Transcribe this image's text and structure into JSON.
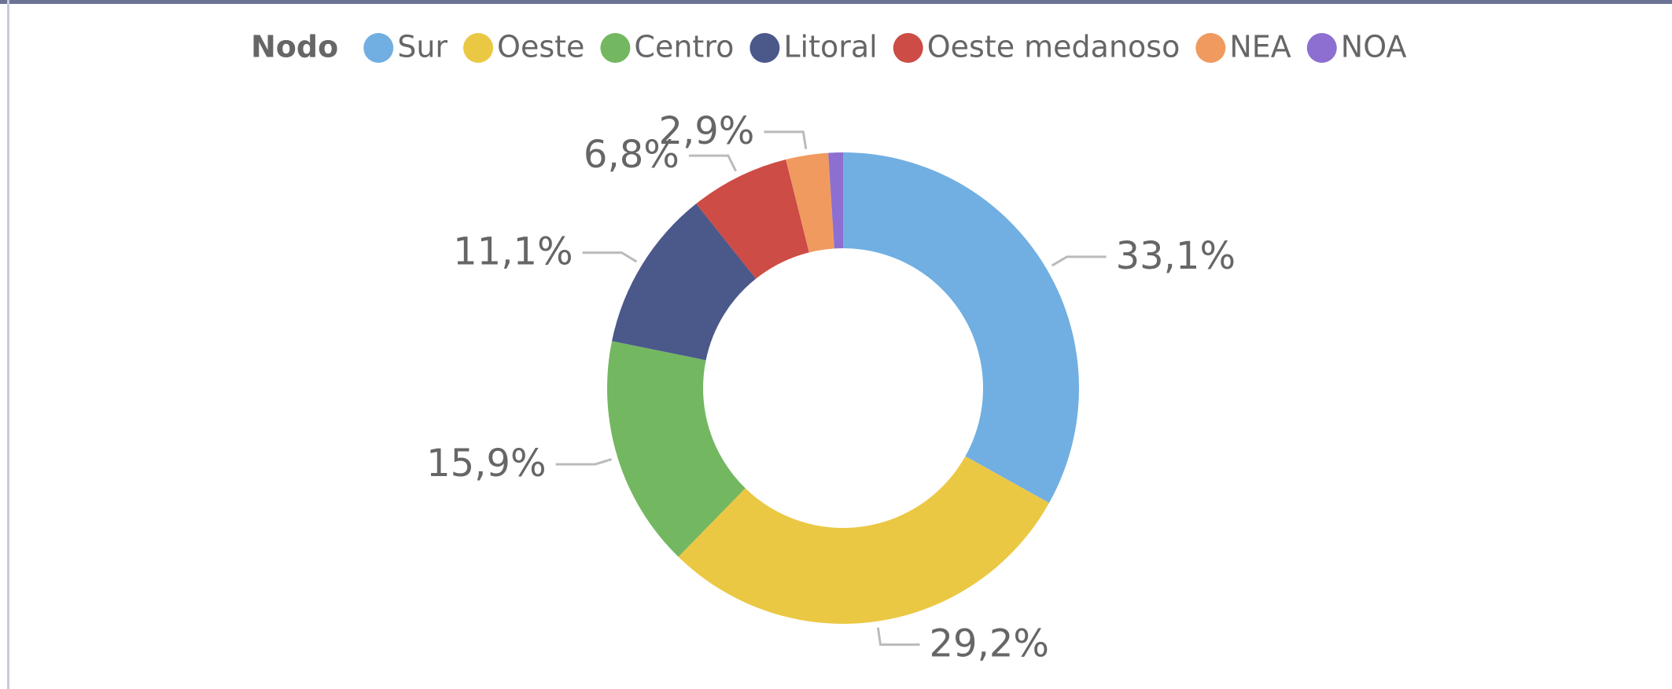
{
  "chart_data": {
    "type": "donut",
    "legend_title": "Nodo",
    "categories": [
      "Sur",
      "Oeste",
      "Centro",
      "Litoral",
      "Oeste medanoso",
      "NEA",
      "NOA"
    ],
    "values": [
      33.1,
      29.2,
      15.9,
      11.1,
      6.8,
      2.9,
      1.0
    ],
    "value_labels": [
      "33,1%",
      "29,2%",
      "15,9%",
      "11,1%",
      "6,8%",
      "2,9%",
      null
    ],
    "colors": [
      "#71afe2",
      "#ebc844",
      "#73b761",
      "#4a588a",
      "#cd4c46",
      "#f09a60",
      "#8d6fd1"
    ],
    "legend": "top"
  }
}
